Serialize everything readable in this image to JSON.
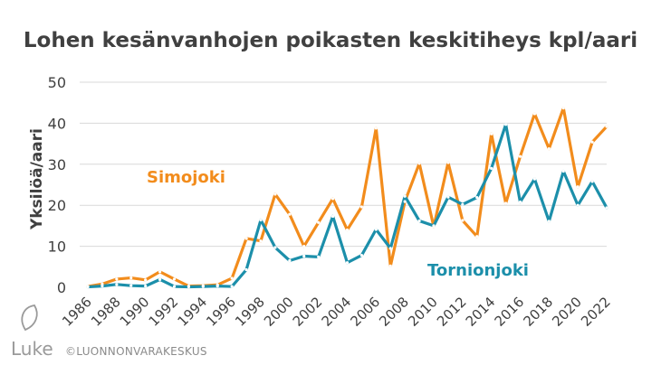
{
  "chart_data": {
    "type": "line",
    "title": "Lohen kesänvanhojen poikasten keskitiheys kpl/aari",
    "ylabel": "Yksilöä/aari",
    "xlabel": "",
    "ylim": [
      0,
      50
    ],
    "yticks": [
      0,
      10,
      20,
      30,
      40,
      50
    ],
    "grid": true,
    "x": [
      1986,
      1987,
      1988,
      1989,
      1990,
      1991,
      1992,
      1993,
      1994,
      1995,
      1996,
      1997,
      1998,
      1999,
      2000,
      2001,
      2002,
      2003,
      2004,
      2005,
      2006,
      2007,
      2008,
      2009,
      2010,
      2011,
      2012,
      2013,
      2014,
      2015,
      2016,
      2017,
      2018,
      2019,
      2020,
      2021,
      2022
    ],
    "xtick_labels": [
      "1986",
      "1988",
      "1990",
      "1992",
      "1994",
      "1996",
      "1998",
      "2000",
      "2002",
      "2004",
      "2006",
      "2008",
      "2010",
      "2012",
      "2014",
      "2016",
      "2018",
      "2020",
      "2022"
    ],
    "series": [
      {
        "name": "Simojoki",
        "color": "#f28c1c",
        "values": [
          0.2,
          0.8,
          2.0,
          2.3,
          1.8,
          3.8,
          2.0,
          0.3,
          0.4,
          0.6,
          2.2,
          11.9,
          11.3,
          22.7,
          17.8,
          10.0,
          15.8,
          21.6,
          14.0,
          19.6,
          38.8,
          5.2,
          20.9,
          30.2,
          14.8,
          30.4,
          16.3,
          12.4,
          37.4,
          20.5,
          31.9,
          42.3,
          33.8,
          43.7,
          24.5,
          35.4,
          39.2
        ]
      },
      {
        "name": "Tornionjoki",
        "color": "#1c8faa",
        "values": [
          0.1,
          0.3,
          0.7,
          0.4,
          0.3,
          1.9,
          0.2,
          0.1,
          0.2,
          0.3,
          0.2,
          4.3,
          16.4,
          9.7,
          6.5,
          7.6,
          7.4,
          17.3,
          6.0,
          7.8,
          14.1,
          9.5,
          22.2,
          16.2,
          15.0,
          22.0,
          20.2,
          21.9,
          29.0,
          39.7,
          20.8,
          26.4,
          16.1,
          28.3,
          20.0,
          25.8,
          19.4
        ]
      }
    ],
    "labels": {
      "simojoki": "Simojoki",
      "tornionjoki": "Tornionjoki"
    }
  },
  "footer": {
    "logo_text": "Luke",
    "copyright": "©LUONNONVARAKESKUS"
  }
}
